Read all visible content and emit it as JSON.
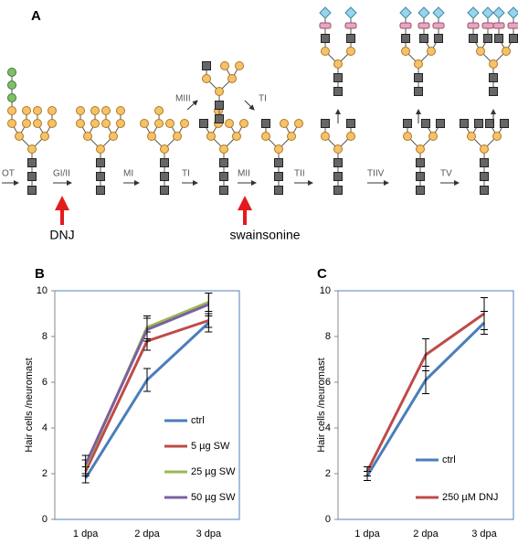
{
  "panel_a": {
    "label": "A",
    "steps": [
      "OT",
      "GI/II",
      "MI",
      "TI",
      "MII",
      "TII",
      "TIIV",
      "TV"
    ],
    "upper_steps": [
      "MIII",
      "TI"
    ],
    "inhibitors": [
      "DNJ",
      "swainsonine"
    ]
  },
  "chart_data": [
    {
      "type": "line",
      "panel_label": "B",
      "y_label": "Hair cells /neuromast",
      "categories": [
        "1 dpa",
        "2 dpa",
        "3 dpa"
      ],
      "series": [
        {
          "name": "ctrl",
          "color": "#4a7ebb",
          "values": [
            1.8,
            6.1,
            8.6
          ],
          "errors": [
            0.2,
            0.5,
            0.4
          ]
        },
        {
          "name": "5 µg SW",
          "color": "#be4b48",
          "values": [
            2.1,
            7.8,
            8.7
          ],
          "errors": [
            0.2,
            0.4,
            0.3
          ]
        },
        {
          "name": "25 µg SW",
          "color": "#98b954",
          "values": [
            2.3,
            8.4,
            9.5
          ],
          "errors": [
            0.3,
            0.5,
            0.4
          ]
        },
        {
          "name": "50 µg SW",
          "color": "#7d5fa0",
          "values": [
            2.4,
            8.3,
            9.4
          ],
          "errors": [
            0.4,
            0.5,
            0.5
          ]
        }
      ],
      "ylim": [
        0,
        10
      ],
      "yticks": [
        0,
        2,
        4,
        6,
        8,
        10
      ],
      "legend": "lower right",
      "error_bars": true
    },
    {
      "type": "line",
      "panel_label": "C",
      "y_label": "Hair cells /neuromast",
      "categories": [
        "1 dpa",
        "2 dpa",
        "3 dpa"
      ],
      "series": [
        {
          "name": "ctrl",
          "color": "#4a7ebb",
          "values": [
            1.9,
            6.1,
            8.6
          ],
          "errors": [
            0.2,
            0.6,
            0.5
          ]
        },
        {
          "name": "250 µM DNJ",
          "color": "#be4b48",
          "values": [
            2.1,
            7.2,
            9.0
          ],
          "errors": [
            0.2,
            0.7,
            0.7
          ]
        }
      ],
      "ylim": [
        0,
        10
      ],
      "yticks": [
        0,
        2,
        4,
        6,
        8,
        10
      ],
      "legend": "lower right",
      "error_bars": true
    }
  ]
}
